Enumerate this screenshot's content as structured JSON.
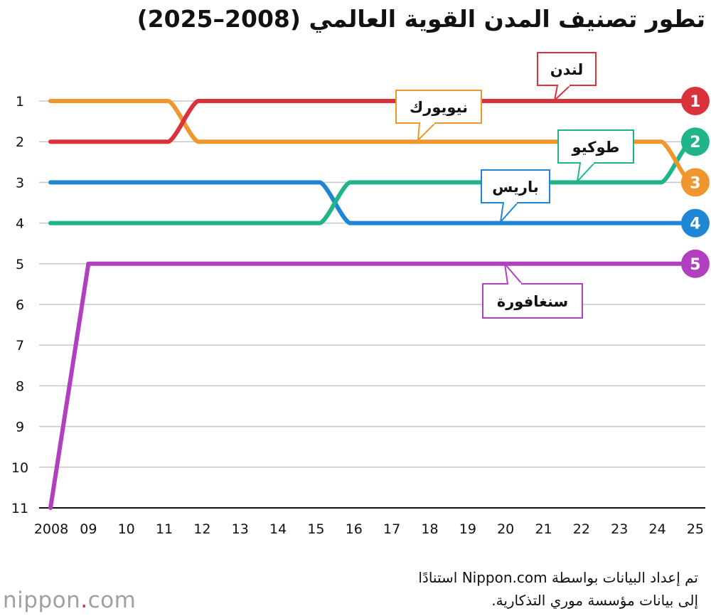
{
  "chart_data": {
    "type": "line",
    "title": "تطور تصنيف المدن القوية العالمي (2008–2025)",
    "x": [
      "2008",
      "09",
      "10",
      "11",
      "12",
      "13",
      "14",
      "15",
      "16",
      "17",
      "18",
      "19",
      "20",
      "21",
      "22",
      "23",
      "24",
      "25"
    ],
    "y_ticks": [
      "1",
      "2",
      "3",
      "4",
      "5",
      "6",
      "7",
      "8",
      "9",
      "10",
      "11"
    ],
    "ylim": [
      1,
      11
    ],
    "y_inverted": true,
    "grid": true,
    "series": [
      {
        "name": "لندن",
        "color": "#d9323a",
        "values": [
          2,
          2,
          2,
          2,
          1,
          1,
          1,
          1,
          1,
          1,
          1,
          1,
          1,
          1,
          1,
          1,
          1,
          1
        ],
        "final_rank": "1"
      },
      {
        "name": "نيويورك",
        "color": "#f0962e",
        "values": [
          1,
          1,
          1,
          1,
          2,
          2,
          2,
          2,
          2,
          2,
          2,
          2,
          2,
          2,
          2,
          2,
          2,
          3
        ],
        "final_rank": "3"
      },
      {
        "name": "طوكيو",
        "color": "#1fb48a",
        "values": [
          4,
          4,
          4,
          4,
          4,
          4,
          4,
          4,
          3,
          3,
          3,
          3,
          3,
          3,
          3,
          3,
          3,
          2
        ],
        "final_rank": "2"
      },
      {
        "name": "باريس",
        "color": "#1e86d4",
        "values": [
          3,
          3,
          3,
          3,
          3,
          3,
          3,
          3,
          4,
          4,
          4,
          4,
          4,
          4,
          4,
          4,
          4,
          4
        ],
        "final_rank": "4"
      },
      {
        "name": "سنغافورة",
        "color": "#b23fc0",
        "values": [
          11,
          5,
          5,
          5,
          5,
          5,
          5,
          5,
          5,
          5,
          5,
          5,
          5,
          5,
          5,
          5,
          5,
          5
        ],
        "final_rank": "5"
      }
    ]
  },
  "footer": {
    "source": "تم إعداد البيانات بواسطة Nippon.com استنادًا إلى بيانات مؤسسة موري التذكارية.",
    "logo_main": "nippon",
    "logo_dot": ".",
    "logo_suffix": "com"
  }
}
